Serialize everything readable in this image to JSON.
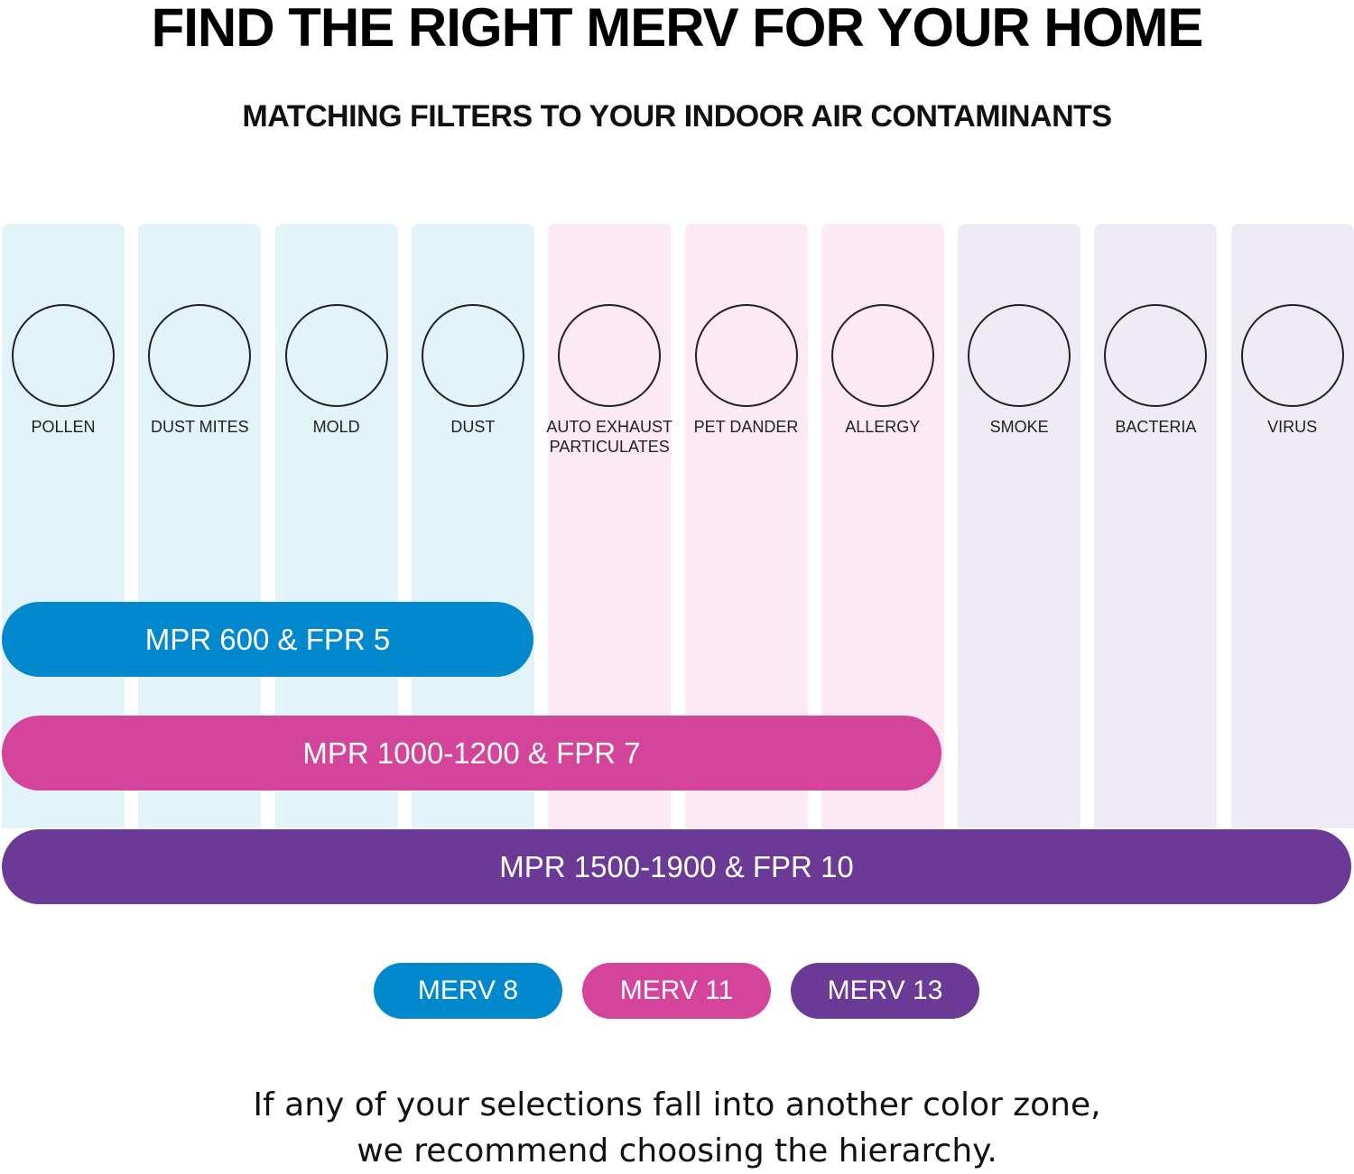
{
  "header": {
    "title": "FIND THE RIGHT MERV FOR YOUR HOME",
    "subtitle": "MATCHING FILTERS TO YOUR INDOOR AIR CONTAMINANTS"
  },
  "contaminants": [
    {
      "lines": [
        "POLLEN"
      ]
    },
    {
      "lines": [
        "DUST MITES"
      ]
    },
    {
      "lines": [
        "MOLD"
      ]
    },
    {
      "lines": [
        "DUST"
      ]
    },
    {
      "lines": [
        "AUTO EXHAUST",
        "PARTICULATES"
      ]
    },
    {
      "lines": [
        "PET DANDER"
      ]
    },
    {
      "lines": [
        "ALLERGY"
      ]
    },
    {
      "lines": [
        "SMOKE"
      ]
    },
    {
      "lines": [
        "BACTERIA"
      ]
    },
    {
      "lines": [
        "VIRUS"
      ]
    }
  ],
  "filters": [
    "MPR 600 & FPR 5",
    "MPR 1000-1200 & FPR 7",
    "MPR 1500-1900 & FPR 10"
  ],
  "merv": [
    "MERV 8",
    "MERV 11",
    "MERV 13"
  ],
  "footer": [
    "If any of your selections fall into another color zone,",
    "we recommend choosing the hierarchy."
  ]
}
